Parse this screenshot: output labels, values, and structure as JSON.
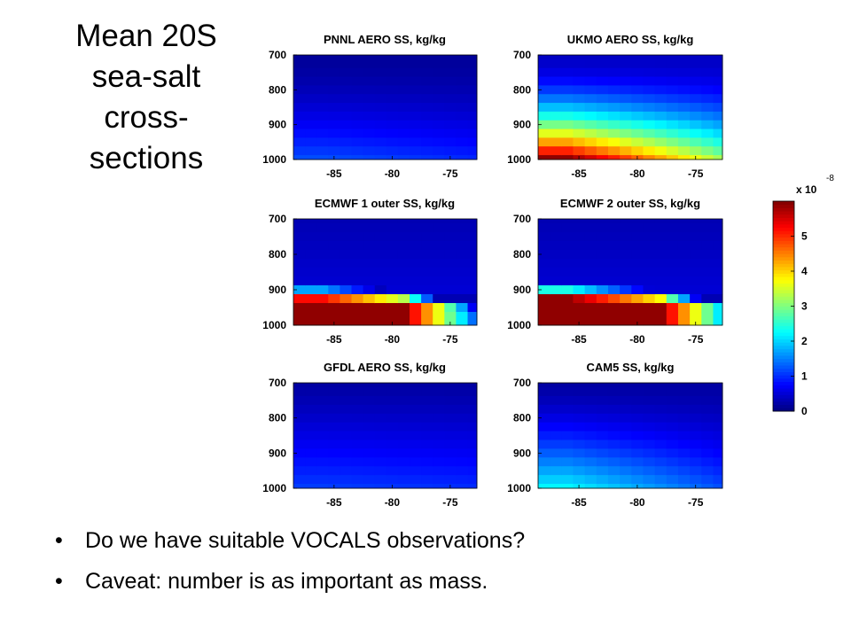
{
  "slide": {
    "title_lines": [
      "Mean 20S",
      "sea-salt",
      "cross-",
      "sections"
    ],
    "bullets": [
      "Do we have suitable VOCALS observations?",
      "Caveat: number is as important as mass."
    ],
    "bullet_glyph": "•"
  },
  "chart_data": [
    {
      "type": "heatmap",
      "title": "PNNL AERO SS, kg/kg",
      "x_ticks": [
        -85,
        -80,
        -75
      ],
      "y_ticks": [
        700,
        800,
        900,
        1000
      ],
      "xlim": [
        -88.5,
        -72.7
      ],
      "ylim": [
        1000,
        700
      ],
      "y_reversed": true,
      "columns": [
        -88,
        -87,
        -86,
        -85,
        -84,
        -83,
        -82,
        -81,
        -80,
        -79,
        -78,
        -77,
        -76,
        -75,
        -74,
        -73
      ],
      "levels": [
        700,
        725,
        750,
        775,
        800,
        825,
        850,
        875,
        900,
        925,
        950,
        975,
        1000
      ],
      "field": {
        "model": "smooth",
        "max_surface": 1.2,
        "min_top": 0.15,
        "east_factor": 0.8,
        "sharpness": 1.6
      }
    },
    {
      "type": "heatmap",
      "title": "UKMO AERO SS, kg/kg",
      "x_ticks": [
        -85,
        -80,
        -75
      ],
      "y_ticks": [
        700,
        800,
        900,
        1000
      ],
      "xlim": [
        -88.5,
        -72.7
      ],
      "ylim": [
        1000,
        700
      ],
      "y_reversed": true,
      "columns": [
        -88,
        -87,
        -86,
        -85,
        -84,
        -83,
        -82,
        -81,
        -80,
        -79,
        -78,
        -77,
        -76,
        -75,
        -74,
        -73
      ],
      "levels": [
        700,
        725,
        750,
        775,
        800,
        825,
        850,
        875,
        900,
        925,
        950,
        975,
        1000
      ],
      "field": {
        "model": "smooth",
        "max_surface": 5.9,
        "min_top": 0.4,
        "east_factor": 0.55,
        "sharpness": 1.9
      }
    },
    {
      "type": "heatmap",
      "title": "ECMWF 1 outer SS, kg/kg",
      "x_ticks": [
        -85,
        -80,
        -75
      ],
      "y_ticks": [
        700,
        800,
        900,
        1000
      ],
      "xlim": [
        -88.5,
        -72.7
      ],
      "ylim": [
        1000,
        700
      ],
      "y_reversed": true,
      "columns": [
        -88,
        -87,
        -86,
        -85,
        -84,
        -83,
        -82,
        -81,
        -80,
        -79,
        -78,
        -77,
        -76,
        -75,
        -74,
        -73
      ],
      "levels": [
        700,
        725,
        750,
        775,
        800,
        825,
        850,
        875,
        900,
        925,
        950,
        975,
        1000
      ],
      "field": {
        "model": "layer",
        "boundary_west": 910,
        "boundary_east": 935,
        "east_drop_start": -79,
        "surface": 5.9,
        "top": 0.3
      }
    },
    {
      "type": "heatmap",
      "title": "ECMWF 2 outer SS, kg/kg",
      "x_ticks": [
        -85,
        -80,
        -75
      ],
      "y_ticks": [
        700,
        800,
        900,
        1000
      ],
      "xlim": [
        -88.5,
        -72.7
      ],
      "ylim": [
        1000,
        700
      ],
      "y_reversed": true,
      "columns": [
        -88,
        -87,
        -86,
        -85,
        -84,
        -83,
        -82,
        -81,
        -80,
        -79,
        -78,
        -77,
        -76,
        -75,
        -74,
        -73
      ],
      "levels": [
        700,
        725,
        750,
        775,
        800,
        825,
        850,
        875,
        900,
        925,
        950,
        975,
        1000
      ],
      "field": {
        "model": "layer",
        "boundary_west": 905,
        "boundary_east": 930,
        "east_drop_start": -78,
        "surface": 5.9,
        "top": 0.3
      }
    },
    {
      "type": "heatmap",
      "title": "GFDL AERO SS, kg/kg",
      "x_ticks": [
        -85,
        -80,
        -75
      ],
      "y_ticks": [
        700,
        800,
        900,
        1000
      ],
      "xlim": [
        -88.5,
        -72.7
      ],
      "ylim": [
        1000,
        700
      ],
      "y_reversed": true,
      "columns": [
        -88,
        -87,
        -86,
        -85,
        -84,
        -83,
        -82,
        -81,
        -80,
        -79,
        -78,
        -77,
        -76,
        -75,
        -74,
        -73
      ],
      "levels": [
        700,
        725,
        750,
        775,
        800,
        825,
        850,
        875,
        900,
        925,
        950,
        975,
        1000
      ],
      "field": {
        "model": "smooth",
        "max_surface": 1.1,
        "min_top": 0.2,
        "east_factor": 0.9,
        "sharpness": 1.2
      }
    },
    {
      "type": "heatmap",
      "title": "CAM5 SS, kg/kg",
      "x_ticks": [
        -85,
        -80,
        -75
      ],
      "y_ticks": [
        700,
        800,
        900,
        1000
      ],
      "xlim": [
        -88.5,
        -72.7
      ],
      "ylim": [
        1000,
        700
      ],
      "y_reversed": true,
      "columns": [
        -88,
        -87,
        -86,
        -85,
        -84,
        -83,
        -82,
        -81,
        -80,
        -79,
        -78,
        -77,
        -76,
        -75,
        -74,
        -73
      ],
      "levels": [
        700,
        725,
        750,
        775,
        800,
        825,
        850,
        875,
        900,
        925,
        950,
        975,
        1000
      ],
      "field": {
        "model": "smooth",
        "max_surface": 2.2,
        "min_top": 0.2,
        "east_factor": 0.55,
        "sharpness": 1.5
      }
    }
  ],
  "colorbar": {
    "multiplier": "x 10",
    "exponent": "-8",
    "min": 0,
    "max": 6,
    "ticks": [
      0,
      1,
      2,
      3,
      4,
      5
    ],
    "colormap": "jet"
  }
}
